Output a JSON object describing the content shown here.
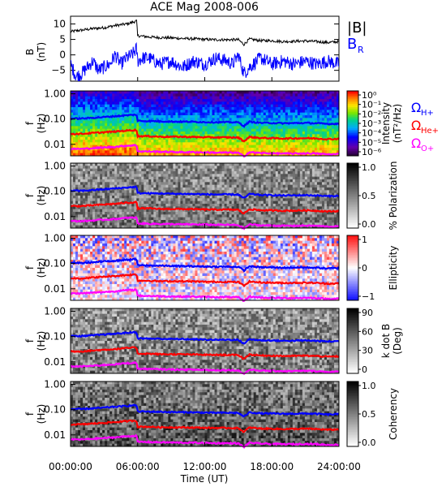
{
  "title": "ACE Mag 2008-006",
  "xlabel": "Time (UT)",
  "x_ticks": [
    "00:00:00",
    "06:00:00",
    "12:00:00",
    "18:00:00",
    "24:00:00"
  ],
  "x_tick_hours": [
    0,
    6,
    12,
    18,
    24
  ],
  "x_range_hours": [
    0,
    24
  ],
  "freq_ticks": [
    "1.00",
    "0.10",
    "0.01"
  ],
  "freq_tick_values": [
    1.0,
    0.1,
    0.01
  ],
  "freq_range_hz": [
    0.0035,
    1.3
  ],
  "freq_axis_label": [
    "f",
    "(Hz)"
  ],
  "colors": {
    "b_total": "#000000",
    "b_r": "#0000ff",
    "omega_h": "#0000ff",
    "omega_he": "#ff0000",
    "omega_o": "#ff00ff"
  },
  "legend_top": {
    "b_total": "|B|",
    "b_r": "B",
    "b_r_sub": "R"
  },
  "gyro_legend": [
    {
      "label": "Ω",
      "sub": "H+",
      "color": "#0000ff"
    },
    {
      "label": "Ω",
      "sub": "He+",
      "color": "#ff0000"
    },
    {
      "label": "Ω",
      "sub": "O+",
      "color": "#ff00ff"
    }
  ],
  "panels": [
    {
      "id": "intensity",
      "cmap": "rainbow",
      "cb_label": [
        "Intensity",
        "(nT²/Hz)"
      ],
      "cb_ticks": [
        "10⁰",
        "10⁻¹",
        "10⁻²",
        "10⁻³",
        "10⁻⁴",
        "10⁻⁵",
        "10⁻⁶"
      ]
    },
    {
      "id": "polarization",
      "cmap": "gray",
      "cb_label": [
        "% Polarization"
      ],
      "cb_ticks": [
        "1.0",
        "0.5",
        "0.0"
      ]
    },
    {
      "id": "ellipticity",
      "cmap": "bwr",
      "cb_label": [
        "Ellipticity"
      ],
      "cb_ticks": [
        "1",
        "0",
        "−1"
      ]
    },
    {
      "id": "kdotb",
      "cmap": "gray",
      "cb_label": [
        "k dot B",
        "(Deg)"
      ],
      "cb_ticks": [
        "90",
        "60",
        "30",
        "0"
      ]
    },
    {
      "id": "coherency",
      "cmap": "gray",
      "cb_label": [
        "Coherency"
      ],
      "cb_ticks": [
        "1.0",
        "0.5",
        "0.0"
      ]
    }
  ],
  "chart_data": {
    "type": "line",
    "title": "ACE Mag 2008-006",
    "xlabel": "Time (UT)",
    "x_unit": "hours UT",
    "b_panel": {
      "ylabel": "B (nT)",
      "y_ticks": [
        10,
        5,
        0,
        -5
      ],
      "ylim": [
        -8.5,
        12.5
      ],
      "series": [
        {
          "name": "|B|",
          "x": [
            0,
            0.5,
            1,
            2,
            3,
            4,
            5,
            5.5,
            5.9,
            6.0,
            6.5,
            7,
            8,
            9,
            10,
            11,
            12,
            13,
            14,
            15,
            15.5,
            16,
            17,
            18,
            19,
            20,
            21,
            22,
            23,
            24
          ],
          "y": [
            7.5,
            7.8,
            8,
            8.5,
            8.8,
            9.5,
            10,
            10.5,
            11,
            6.2,
            6,
            5.8,
            5.6,
            5.5,
            5.3,
            5.2,
            5.0,
            4.9,
            4.9,
            4.9,
            3.4,
            5.1,
            4.6,
            4.6,
            4.3,
            4.4,
            4.5,
            4.3,
            4.0,
            4.3
          ]
        },
        {
          "name": "B_R",
          "x": [
            0,
            0.5,
            1,
            1.5,
            2,
            2.5,
            3,
            3.5,
            4,
            4.5,
            5,
            5.5,
            5.9,
            6.0,
            6.5,
            7,
            8,
            9,
            10,
            11,
            12,
            13,
            14,
            14.5,
            15,
            15.5,
            16,
            17,
            18,
            19,
            20,
            21,
            22,
            23,
            24
          ],
          "y": [
            -3,
            -7,
            -6,
            -4,
            -2,
            -5,
            -4,
            -3,
            0,
            -3,
            -1,
            0,
            2,
            -2,
            -1,
            -1,
            -3,
            -2,
            -4,
            -2,
            -3,
            -1,
            -2,
            -3,
            0,
            -6,
            -4,
            -1,
            -3,
            -2,
            -3,
            -2,
            -3,
            -2,
            -3
          ]
        }
      ]
    },
    "gyrofrequencies_hz": {
      "x": [
        0,
        1,
        2,
        3,
        4,
        5,
        5.9,
        6.0,
        7,
        8,
        9,
        10,
        11,
        12,
        13,
        14,
        15,
        15.5,
        16,
        17,
        18,
        19,
        20,
        21,
        22,
        23,
        24
      ],
      "series": [
        {
          "name": "Ω_H+",
          "y": [
            0.105,
            0.105,
            0.112,
            0.12,
            0.13,
            0.14,
            0.15,
            0.085,
            0.083,
            0.082,
            0.08,
            0.079,
            0.078,
            0.076,
            0.075,
            0.075,
            0.074,
            0.052,
            0.078,
            0.071,
            0.07,
            0.068,
            0.069,
            0.07,
            0.068,
            0.064,
            0.066
          ]
        },
        {
          "name": "Ω_He+",
          "y": [
            0.026,
            0.026,
            0.028,
            0.03,
            0.032,
            0.035,
            0.037,
            0.021,
            0.021,
            0.02,
            0.02,
            0.0198,
            0.0195,
            0.019,
            0.0188,
            0.0188,
            0.0185,
            0.013,
            0.0195,
            0.0178,
            0.0175,
            0.017,
            0.0172,
            0.0175,
            0.017,
            0.016,
            0.0165
          ]
        },
        {
          "name": "Ω_O+",
          "y": [
            0.0066,
            0.0066,
            0.007,
            0.0075,
            0.008,
            0.0088,
            0.0092,
            0.0053,
            0.0052,
            0.0051,
            0.005,
            0.0049,
            0.0049,
            0.0048,
            0.0047,
            0.0047,
            0.0046,
            0.0033,
            0.0049,
            0.0045,
            0.0044,
            0.0043,
            0.0043,
            0.0044,
            0.0043,
            0.004,
            0.0041
          ]
        }
      ]
    },
    "spectrogram_panels": [
      "Intensity (nT²/Hz)",
      "% Polarization",
      "Ellipticity",
      "k dot B (Deg)",
      "Coherency"
    ]
  }
}
